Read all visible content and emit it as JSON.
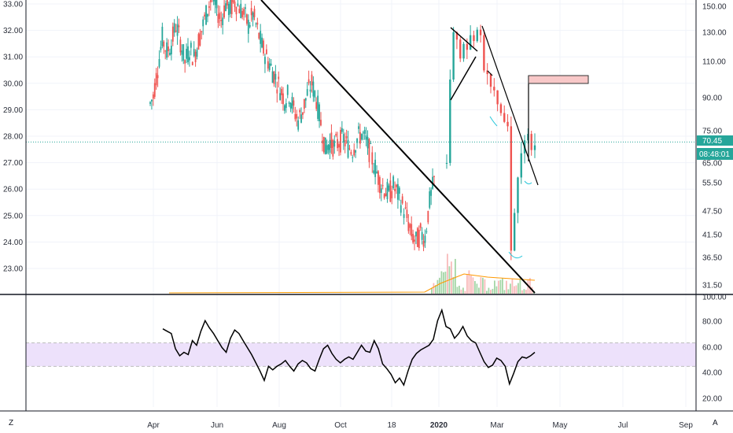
{
  "chart_data": [
    {
      "type": "candlestick",
      "left_axis": {
        "ticks": [
          "23.00",
          "24.00",
          "25.00",
          "26.00",
          "27.00",
          "28.00",
          "29.00",
          "30.00",
          "31.00",
          "32.00",
          "33.00"
        ],
        "range": [
          22.05,
          33.1
        ]
      },
      "right_axis": {
        "ticks": [
          "31.50",
          "36.50",
          "41.50",
          "47.50",
          "55.50",
          "65.00",
          "75.00",
          "90.00",
          "110.00",
          "130.00",
          "150.00"
        ]
      },
      "x_ticks": [
        "Apr",
        "Jun",
        "Aug",
        "Oct",
        "18",
        "2020",
        "Mar",
        "May",
        "Jul",
        "Sep"
      ],
      "price_line": {
        "left_value": 27.78,
        "label": "70.45",
        "color": "#26a69a"
      },
      "countdown": "08:48:01",
      "up_color": "#26a69a",
      "down_color": "#ef5350",
      "series": [
        {
          "name": "",
          "segment": "1st ticker",
          "closes": [
            29.5,
            30.6,
            31.7,
            31.2,
            31.5,
            32.2,
            31.6,
            30.8,
            31.3,
            31.0,
            31.6,
            32.2,
            32.8,
            33.3,
            32.8,
            32.4,
            33.0,
            32.8,
            33.1,
            32.9,
            32.6,
            32.2,
            32.6,
            32.0,
            31.4,
            31.0,
            30.6,
            30.2,
            29.8,
            29.4,
            29.6,
            29.0,
            28.6,
            29.0,
            29.6,
            30.0,
            29.4,
            28.5,
            27.5,
            27.8,
            27.6,
            27.8,
            27.9,
            27.6,
            27.5,
            27.9,
            28.1,
            27.8,
            27.3,
            26.8,
            26.3,
            26.0,
            25.8,
            26.1,
            25.8,
            25.4,
            24.9,
            24.3,
            24.0,
            24.3,
            24.2,
            25.5,
            26.3
          ]
        },
        {
          "name": "",
          "segment": "2nd ticker",
          "closes": [
            65,
            100,
            130,
            125,
            112,
            122,
            118,
            128,
            124,
            132,
            128,
            105,
            103,
            96,
            94,
            87,
            83,
            79,
            77,
            38,
            47,
            58,
            68,
            72,
            74,
            69,
            70.45
          ]
        }
      ]
    },
    {
      "type": "line",
      "right_axis": {
        "ticks": [
          "20.00",
          "40.00",
          "60.00",
          "80.00",
          "100.00"
        ],
        "range": [
          12,
          100
        ]
      },
      "band": {
        "low": 40,
        "high": 60,
        "color": "#ede1fb"
      },
      "series": [
        {
          "name": "",
          "values": [
            72,
            70,
            68,
            55,
            49,
            52,
            50,
            62,
            58,
            70,
            79,
            73,
            68,
            62,
            56,
            52,
            64,
            71,
            68,
            62,
            56,
            50,
            43,
            36,
            28,
            40,
            37,
            40,
            42,
            45,
            40,
            36,
            42,
            45,
            43,
            38,
            36,
            46,
            55,
            58,
            51,
            46,
            43,
            46,
            48,
            46,
            52,
            58,
            53,
            52,
            62,
            55,
            42,
            38,
            33,
            26,
            30,
            24,
            36,
            46,
            51,
            54,
            56,
            58,
            63,
            79,
            88,
            74,
            72,
            64,
            68,
            74,
            66,
            62,
            60,
            52,
            44,
            39,
            41,
            47,
            45,
            40,
            25,
            34,
            44,
            48,
            47,
            49,
            52
          ]
        }
      ]
    }
  ],
  "footer": {
    "left_letter": "Z",
    "right_letter": "A"
  },
  "colors": {
    "grid": "#f0f3fa",
    "axis": "#131722",
    "trendline": "#000000",
    "rsi": "#000000",
    "box": "#f8c8c8",
    "volume_avg": "#ff9800"
  }
}
